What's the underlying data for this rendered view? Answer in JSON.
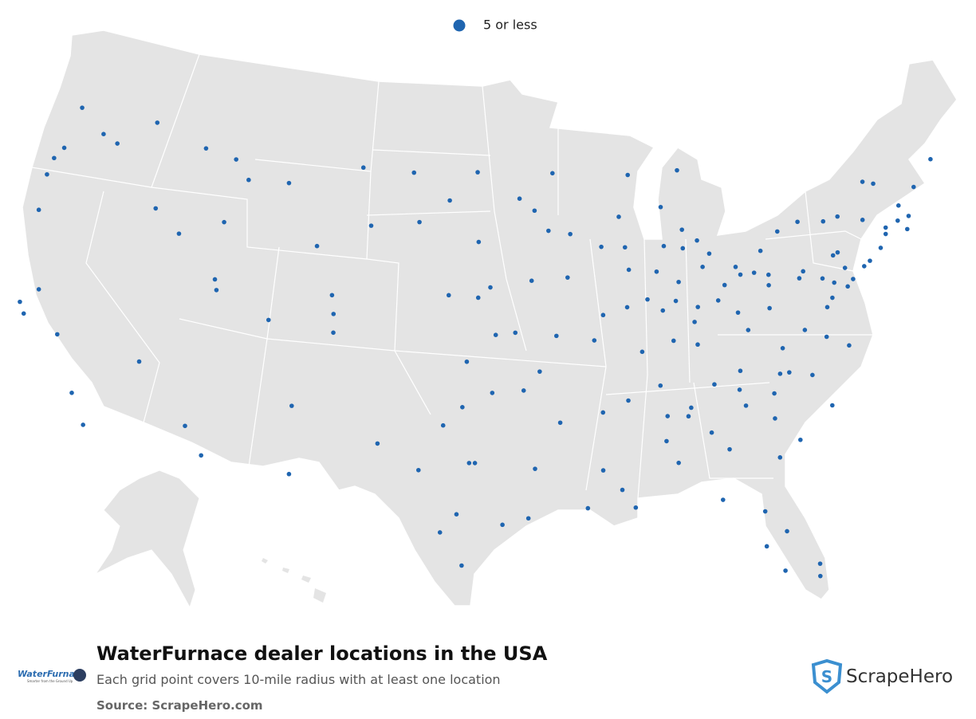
{
  "legend": {
    "label": "5 or less",
    "color": "#1f65b0"
  },
  "title": "WaterFurnace dealer locations in the USA",
  "subtitle": "Each grid point covers 10-mile radius with at least one location",
  "source": "Source: ScrapeHero.com",
  "logos": {
    "left": "WaterFurnace",
    "left_tagline": "Smarter from the Ground Up",
    "right": "ScrapeHero"
  },
  "locations": [
    [
      -122.3,
      47.6
    ],
    [
      -122.6,
      45.5
    ],
    [
      -123,
      44.9
    ],
    [
      -123.1,
      44.05
    ],
    [
      -122.9,
      42.3
    ],
    [
      -117.4,
      47.7
    ],
    [
      -119.5,
      46.3
    ],
    [
      -120.5,
      46.6
    ],
    [
      -116.2,
      43.6
    ],
    [
      -114.5,
      42.6
    ],
    [
      -112,
      43.5
    ],
    [
      -111.9,
      40.7
    ],
    [
      -111.7,
      40.2
    ],
    [
      -121.5,
      38.6
    ],
    [
      -122.3,
      37.8
    ],
    [
      -121.9,
      37.3
    ],
    [
      -119.8,
      36.7
    ],
    [
      -118.2,
      34.1
    ],
    [
      -117.2,
      32.7
    ],
    [
      -115.1,
      36.2
    ],
    [
      -112,
      33.5
    ],
    [
      -110.9,
      32.2
    ],
    [
      -106.6,
      35.1
    ],
    [
      -104.8,
      38.8
    ],
    [
      -104.9,
      39.7
    ],
    [
      -105.1,
      40.6
    ],
    [
      -108.5,
      39.1
    ],
    [
      -106.3,
      31.8
    ],
    [
      -108.5,
      45.8
    ],
    [
      -111,
      45.7
    ],
    [
      -112,
      46.6
    ],
    [
      -114,
      46.9
    ],
    [
      -104,
      46.9
    ],
    [
      -106.3,
      42.9
    ],
    [
      -100.8,
      46.8
    ],
    [
      -96.8,
      46.9
    ],
    [
      -98.5,
      45.5
    ],
    [
      -96.7,
      43.5
    ],
    [
      -103.2,
      44.1
    ],
    [
      -100.3,
      44.4
    ],
    [
      -96,
      41.3
    ],
    [
      -96.7,
      40.8
    ],
    [
      -98.4,
      40.9
    ],
    [
      -97.3,
      37.7
    ],
    [
      -95.7,
      39
    ],
    [
      -94.6,
      39.1
    ],
    [
      -95.9,
      36.2
    ],
    [
      -97.5,
      35.5
    ],
    [
      -98.5,
      34.6
    ],
    [
      -97.1,
      32.8
    ],
    [
      -96.8,
      32.8
    ],
    [
      -97.7,
      30.3
    ],
    [
      -98.5,
      29.4
    ],
    [
      -95.4,
      29.8
    ],
    [
      -94.1,
      30.1
    ],
    [
      -101.9,
      33.6
    ],
    [
      -99.7,
      32.4
    ],
    [
      -97.4,
      27.8
    ],
    [
      -93.6,
      41.6
    ],
    [
      -91.5,
      41.7
    ],
    [
      -92.5,
      44
    ],
    [
      -93.3,
      45
    ],
    [
      -94.2,
      45.6
    ],
    [
      -92.1,
      46.8
    ],
    [
      -91.2,
      43.8
    ],
    [
      -89.4,
      43.1
    ],
    [
      -88,
      43
    ],
    [
      -88.2,
      44.5
    ],
    [
      -87.9,
      41.9
    ],
    [
      -89.6,
      39.8
    ],
    [
      -88.2,
      40.1
    ],
    [
      -90.2,
      38.6
    ],
    [
      -92.3,
      38.9
    ],
    [
      -93.3,
      37.2
    ],
    [
      -92.3,
      34.7
    ],
    [
      -94.2,
      36.3
    ],
    [
      -91.1,
      30.5
    ],
    [
      -93.7,
      32.5
    ],
    [
      -90.2,
      32.3
    ],
    [
      -89.3,
      31.3
    ],
    [
      -88.7,
      30.4
    ],
    [
      -86.8,
      33.5
    ],
    [
      -86.3,
      32.4
    ],
    [
      -85.5,
      34.6
    ],
    [
      -84.4,
      33.7
    ],
    [
      -83.6,
      32.8
    ],
    [
      -81.1,
      32.1
    ],
    [
      -84.3,
      30.4
    ],
    [
      -82.3,
      29.6
    ],
    [
      -81.4,
      28.5
    ],
    [
      -82.5,
      27.9
    ],
    [
      -80.2,
      26.1
    ],
    [
      -80.1,
      26.7
    ],
    [
      -81.8,
      26.6
    ],
    [
      -86.8,
      36.2
    ],
    [
      -85.3,
      35
    ],
    [
      -83.9,
      36
    ],
    [
      -82.4,
      36.5
    ],
    [
      -84.5,
      38
    ],
    [
      -85.8,
      38.3
    ],
    [
      -87.6,
      37.9
    ],
    [
      -86.2,
      39.8
    ],
    [
      -85.1,
      41.1
    ],
    [
      -86.3,
      41.7
    ],
    [
      -84.6,
      42.7
    ],
    [
      -83.1,
      42.3
    ],
    [
      -85.7,
      42.9
    ],
    [
      -84.5,
      43.6
    ],
    [
      -83.7,
      43
    ],
    [
      -85.6,
      44.8
    ],
    [
      -84.3,
      46.5
    ],
    [
      -87.4,
      46.5
    ],
    [
      -83,
      40
    ],
    [
      -84.2,
      39.8
    ],
    [
      -84.5,
      39.1
    ],
    [
      -81.7,
      41.5
    ],
    [
      -83.6,
      41.7
    ],
    [
      -81.5,
      41.1
    ],
    [
      -80.7,
      41.1
    ],
    [
      -82.5,
      40.7
    ],
    [
      -82,
      39.3
    ],
    [
      -80,
      40.4
    ],
    [
      -79.9,
      40.9
    ],
    [
      -78.2,
      40.5
    ],
    [
      -76.9,
      40.3
    ],
    [
      -75.2,
      40
    ],
    [
      -75.5,
      40.6
    ],
    [
      -76.3,
      40
    ],
    [
      -77.9,
      40.8
    ],
    [
      -76,
      41.3
    ],
    [
      -75.7,
      41.4
    ],
    [
      -80.1,
      42.1
    ],
    [
      -78.9,
      42.9
    ],
    [
      -77.6,
      43.2
    ],
    [
      -76.1,
      43
    ],
    [
      -73.8,
      42.7
    ],
    [
      -75.2,
      43.1
    ],
    [
      -74,
      40.7
    ],
    [
      -74.4,
      40.5
    ],
    [
      -73.2,
      41.2
    ],
    [
      -72.7,
      41.8
    ],
    [
      -71.4,
      41.8
    ],
    [
      -71.1,
      42.4
    ],
    [
      -71.8,
      42.3
    ],
    [
      -72.6,
      42.1
    ],
    [
      -71.5,
      43
    ],
    [
      -70.3,
      43.7
    ],
    [
      -68.8,
      44.8
    ],
    [
      -72.6,
      44.3
    ],
    [
      -73.2,
      44.5
    ],
    [
      -76.6,
      39.3
    ],
    [
      -77,
      38.9
    ],
    [
      -77.4,
      37.5
    ],
    [
      -76.3,
      36.9
    ],
    [
      -79.9,
      37.3
    ],
    [
      -78.5,
      38
    ],
    [
      -81.6,
      38.4
    ],
    [
      -80.2,
      39.3
    ],
    [
      -80.8,
      35.2
    ],
    [
      -78.6,
      35.8
    ],
    [
      -79.8,
      36.1
    ],
    [
      -77.9,
      34.2
    ],
    [
      -80.3,
      36.1
    ],
    [
      -82.6,
      35.6
    ],
    [
      -81,
      34
    ],
    [
      -82.4,
      34.8
    ],
    [
      -79.9,
      32.8
    ],
    [
      -75.6,
      39.7
    ],
    [
      -86.6,
      34.7
    ],
    [
      -88.6,
      35.6
    ],
    [
      -90,
      35.1
    ],
    [
      -87,
      40.4
    ],
    [
      -85.4,
      40.2
    ]
  ]
}
